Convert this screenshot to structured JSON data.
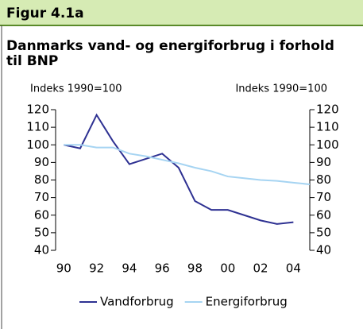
{
  "header": "Figur 4.1a",
  "chart_data": {
    "type": "line",
    "title": "Danmarks vand- og energiforbrug i forhold til BNP",
    "y_label": "Indeks 1990=100",
    "y2_label": "Indeks 1990=100",
    "x": [
      1990,
      1991,
      1992,
      1993,
      1994,
      1995,
      1996,
      1997,
      1998,
      1999,
      2000,
      2001,
      2002,
      2003,
      2004,
      2005
    ],
    "series": [
      {
        "name": "Vandforbrug",
        "color": "#2e3192",
        "values": [
          100,
          98,
          117,
          102,
          89,
          92,
          95,
          87,
          68,
          63,
          63,
          60,
          57,
          55,
          56,
          null
        ]
      },
      {
        "name": "Energiforbrug",
        "color": "#a6d4f2",
        "values": [
          100,
          100,
          98.5,
          98.5,
          95,
          93.5,
          91.5,
          89.5,
          87,
          85,
          82,
          81,
          80,
          79.5,
          78.5,
          77.5
        ]
      }
    ],
    "xlim": [
      1989.5,
      2005
    ],
    "xticks": [
      {
        "value": 1990,
        "label": "90"
      },
      {
        "value": 1992,
        "label": "92"
      },
      {
        "value": 1994,
        "label": "94"
      },
      {
        "value": 1996,
        "label": "96"
      },
      {
        "value": 1998,
        "label": "98"
      },
      {
        "value": 2000,
        "label": "00"
      },
      {
        "value": 2002,
        "label": "02"
      },
      {
        "value": 2004,
        "label": "04"
      }
    ],
    "ylim": [
      40,
      120
    ],
    "yticks": [
      40,
      50,
      60,
      70,
      80,
      90,
      100,
      110,
      120
    ],
    "y2lim": [
      40,
      120
    ],
    "y2ticks": [
      40,
      50,
      60,
      70,
      80,
      90,
      100,
      110,
      120
    ],
    "legend": "bottom"
  }
}
